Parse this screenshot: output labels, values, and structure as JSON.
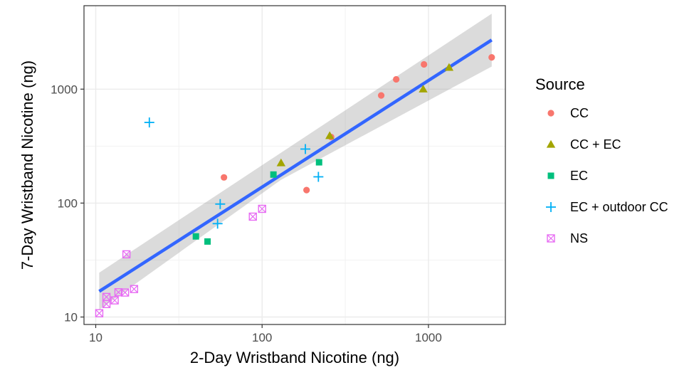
{
  "chart_data": {
    "type": "scatter",
    "xlabel": "2-Day Wristband Nicotine (ng)",
    "ylabel": "7-Day Wristband Nicotine (ng)",
    "x_scale": "log10",
    "y_scale": "log10",
    "xlim": [
      8.5,
      2900
    ],
    "ylim": [
      8.6,
      5400
    ],
    "x_ticks": [
      10,
      100,
      1000
    ],
    "x_tick_labels": [
      "10",
      "100",
      "1000"
    ],
    "y_ticks": [
      10,
      100,
      1000
    ],
    "y_tick_labels": [
      "10",
      "100",
      "1000"
    ],
    "grid": true,
    "legend": {
      "title": "Source",
      "position": "right"
    },
    "series": [
      {
        "name": "CC",
        "marker": "circle",
        "color": "#F8766D",
        "points": [
          [
            59,
            168
          ],
          [
            185,
            130
          ],
          [
            260,
            380
          ],
          [
            520,
            880
          ],
          [
            640,
            1220
          ],
          [
            940,
            1650
          ],
          [
            2400,
            1900
          ]
        ]
      },
      {
        "name": "CC + EC",
        "marker": "triangle",
        "color": "#A3A500",
        "points": [
          [
            130,
            225
          ],
          [
            255,
            390
          ],
          [
            930,
            1000
          ],
          [
            1330,
            1550
          ]
        ]
      },
      {
        "name": "EC",
        "marker": "square",
        "color": "#00BF7D",
        "points": [
          [
            40,
            51
          ],
          [
            47,
            46
          ],
          [
            117,
            178
          ],
          [
            220,
            228
          ]
        ]
      },
      {
        "name": "EC + outdoor CC",
        "marker": "plus",
        "color": "#00B0F6",
        "points": [
          [
            21,
            510
          ],
          [
            54,
            66
          ],
          [
            56,
            98
          ],
          [
            182,
            298
          ],
          [
            218,
            170
          ]
        ]
      },
      {
        "name": "NS",
        "marker": "boxx",
        "color": "#E76BF3",
        "points": [
          [
            10.5,
            10.8
          ],
          [
            11.6,
            13
          ],
          [
            11.6,
            15
          ],
          [
            13,
            14
          ],
          [
            13.7,
            16.5
          ],
          [
            15,
            16.4
          ],
          [
            15.3,
            35.5
          ],
          [
            17,
            17.6
          ],
          [
            88,
            76
          ],
          [
            100,
            89
          ]
        ]
      }
    ],
    "fit_line": {
      "color": "#3366FF",
      "band_color": "#999999",
      "x": [
        10.5,
        2400
      ],
      "y": [
        16.8,
        2700
      ],
      "band_lower": [
        11.6,
        1580
      ],
      "band_upper": [
        24.5,
        4600
      ],
      "band_mid_x": 130,
      "band_mid_lower": [
        160,
        235
      ]
    }
  }
}
